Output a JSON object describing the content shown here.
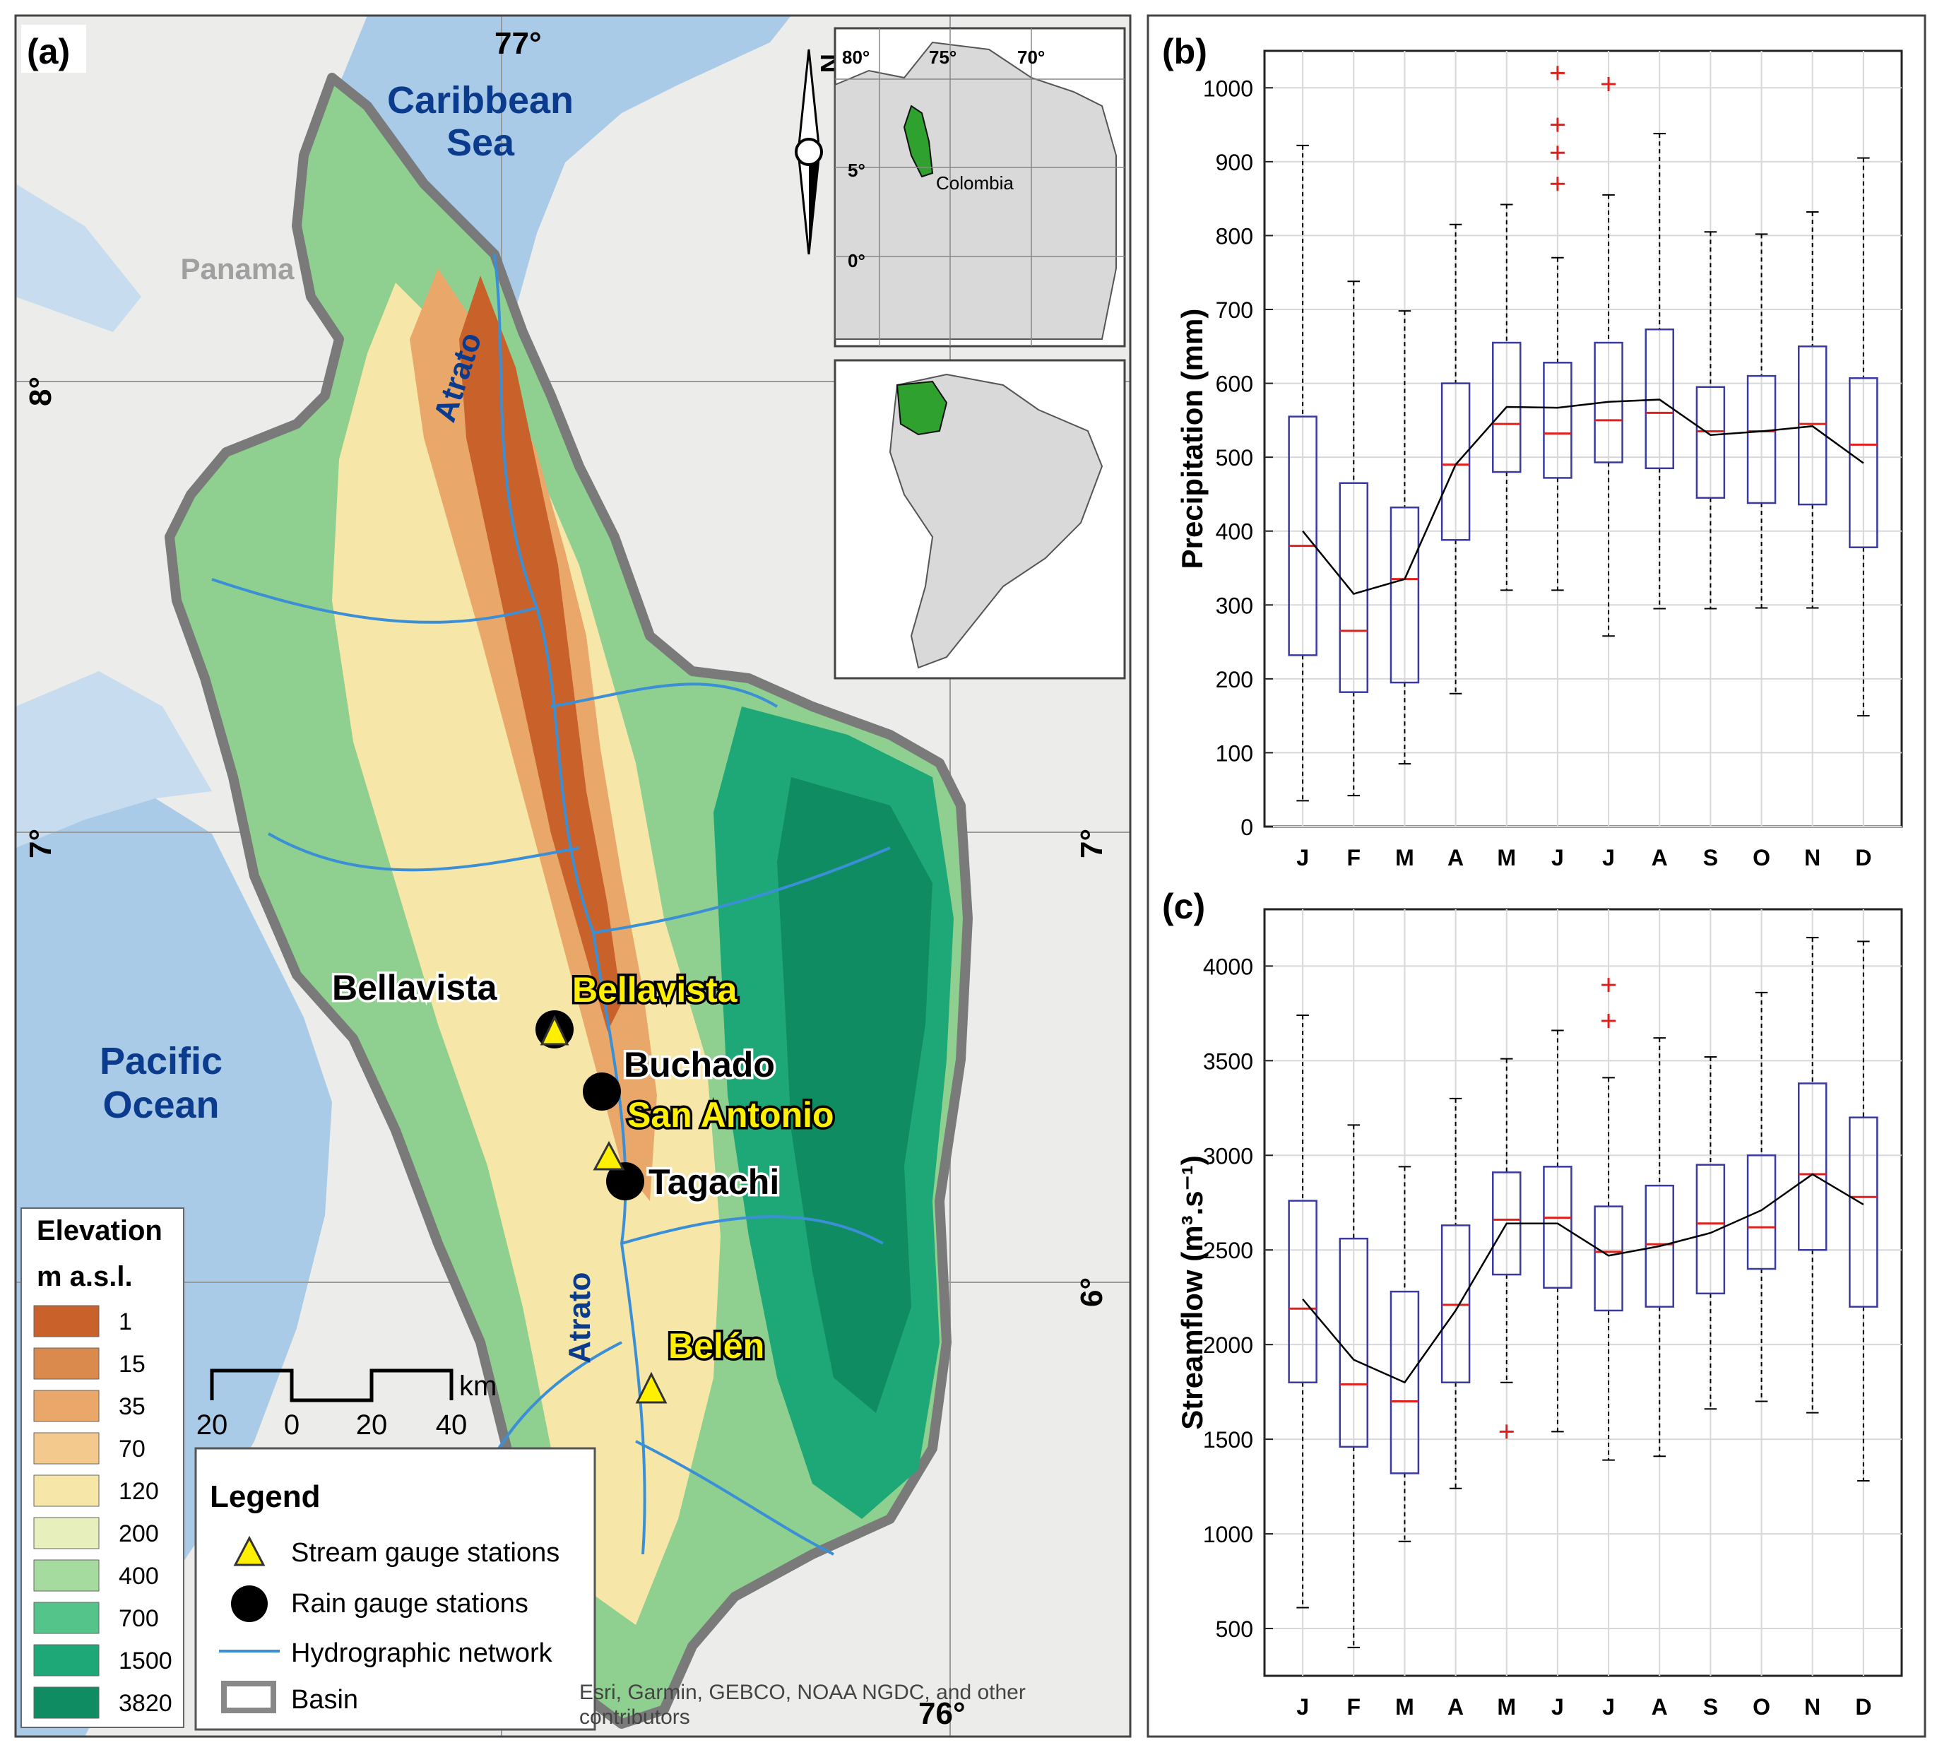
{
  "panel_a": {
    "tag": "(a)",
    "lon_ticks": [
      "77°",
      "76°"
    ],
    "lat_ticks": [
      "8°",
      "7°",
      "6°"
    ],
    "lat_ticks_right": [
      "7°",
      "6°"
    ],
    "north_letter": "N",
    "sea_labels": [
      "Caribbean",
      "Sea"
    ],
    "ocean_labels": [
      "Pacific",
      "Ocean"
    ],
    "country_label": "Panama",
    "river_labels": [
      "Atrato",
      "Atrato"
    ],
    "rain_stations": [
      "Bellavista",
      "Buchado",
      "Tagachi"
    ],
    "stream_stations": [
      "Bellavista",
      "San Antonio",
      "Belén"
    ],
    "inset_lon_ticks": [
      "80°",
      "75°",
      "70°"
    ],
    "inset_lat_ticks": [
      "5°",
      "0°"
    ],
    "inset_country": "Colombia",
    "elevation_legend": {
      "title": "Elevation",
      "unit": "m a.s.l.",
      "values": [
        "1",
        "15",
        "35",
        "70",
        "120",
        "200",
        "400",
        "700",
        "1500",
        "3820"
      ],
      "colors": [
        "#c9622a",
        "#d98a4c",
        "#e9a86a",
        "#f4c98d",
        "#f6e7a8",
        "#e7f0bd",
        "#a6dba0",
        "#55c48a",
        "#1fa877",
        "#0f8c61"
      ]
    },
    "scale_bar": {
      "ticks": [
        "20",
        "0",
        "20",
        "40"
      ],
      "unit": "km"
    },
    "legend": {
      "title": "Legend",
      "items": [
        "Stream gauge stations",
        "Rain gauge stations",
        "Hydrographic network",
        "Basin"
      ]
    },
    "attribution": [
      "Esri, Garmin, GEBCO, NOAA NGDC, and other",
      "contributors"
    ],
    "colors": {
      "land": "#eeeeec",
      "sea": "#a9cbe8",
      "river": "#3a8fd6",
      "label_blue": "#0b3b8c",
      "station_yellow": "#ffef00"
    }
  },
  "chart_data": [
    {
      "panel": "(b)",
      "type": "box",
      "ylabel": "Precipitation (mm)",
      "categories": [
        "J",
        "F",
        "M",
        "A",
        "M",
        "J",
        "J",
        "A",
        "S",
        "O",
        "N",
        "D"
      ],
      "ylim": [
        0,
        1050
      ],
      "yticks": [
        0,
        100,
        200,
        300,
        400,
        500,
        600,
        700,
        800,
        900,
        1000
      ],
      "grid": true,
      "boxes": [
        {
          "lo": 35,
          "q1": 232,
          "med": 380,
          "q3": 555,
          "hi": 922,
          "mean": 400,
          "outliers": []
        },
        {
          "lo": 42,
          "q1": 182,
          "med": 265,
          "q3": 465,
          "hi": 738,
          "mean": 315,
          "outliers": []
        },
        {
          "lo": 85,
          "q1": 195,
          "med": 335,
          "q3": 432,
          "hi": 698,
          "mean": 335,
          "outliers": []
        },
        {
          "lo": 180,
          "q1": 388,
          "med": 490,
          "q3": 600,
          "hi": 815,
          "mean": 490,
          "outliers": []
        },
        {
          "lo": 320,
          "q1": 480,
          "med": 545,
          "q3": 655,
          "hi": 842,
          "mean": 568,
          "outliers": []
        },
        {
          "lo": 320,
          "q1": 472,
          "med": 532,
          "q3": 628,
          "hi": 770,
          "mean": 567,
          "outliers": [
            1020,
            950,
            912,
            870
          ]
        },
        {
          "lo": 258,
          "q1": 493,
          "med": 550,
          "q3": 655,
          "hi": 855,
          "mean": 575,
          "outliers": [
            1005
          ]
        },
        {
          "lo": 295,
          "q1": 485,
          "med": 560,
          "q3": 673,
          "hi": 938,
          "mean": 578,
          "outliers": []
        },
        {
          "lo": 295,
          "q1": 445,
          "med": 535,
          "q3": 595,
          "hi": 805,
          "mean": 530,
          "outliers": []
        },
        {
          "lo": 296,
          "q1": 438,
          "med": 535,
          "q3": 610,
          "hi": 802,
          "mean": 535,
          "outliers": []
        },
        {
          "lo": 296,
          "q1": 436,
          "med": 545,
          "q3": 650,
          "hi": 832,
          "mean": 542,
          "outliers": []
        },
        {
          "lo": 150,
          "q1": 378,
          "med": 517,
          "q3": 607,
          "hi": 905,
          "mean": 492,
          "outliers": []
        }
      ]
    },
    {
      "panel": "(c)",
      "type": "box",
      "ylabel": "Streamflow (m³.s⁻¹)",
      "categories": [
        "J",
        "F",
        "M",
        "A",
        "M",
        "J",
        "J",
        "A",
        "S",
        "O",
        "N",
        "D"
      ],
      "ylim": [
        250,
        4300
      ],
      "yticks": [
        500,
        1000,
        1500,
        2000,
        2500,
        3000,
        3500,
        4000
      ],
      "grid": true,
      "boxes": [
        {
          "lo": 610,
          "q1": 1800,
          "med": 2190,
          "q3": 2760,
          "hi": 3740,
          "mean": 2240,
          "outliers": []
        },
        {
          "lo": 400,
          "q1": 1460,
          "med": 1790,
          "q3": 2560,
          "hi": 3160,
          "mean": 1920,
          "outliers": []
        },
        {
          "lo": 960,
          "q1": 1320,
          "med": 1700,
          "q3": 2280,
          "hi": 2940,
          "mean": 1800,
          "outliers": []
        },
        {
          "lo": 1240,
          "q1": 1800,
          "med": 2210,
          "q3": 2630,
          "hi": 3300,
          "mean": 2180,
          "outliers": []
        },
        {
          "lo": 1800,
          "q1": 2370,
          "med": 2660,
          "q3": 2910,
          "hi": 3510,
          "mean": 2640,
          "outliers": [
            1540
          ]
        },
        {
          "lo": 1540,
          "q1": 2300,
          "med": 2670,
          "q3": 2940,
          "hi": 3660,
          "mean": 2640,
          "outliers": []
        },
        {
          "lo": 1390,
          "q1": 2180,
          "med": 2490,
          "q3": 2730,
          "hi": 3410,
          "mean": 2470,
          "outliers": [
            3710,
            3900
          ]
        },
        {
          "lo": 1410,
          "q1": 2200,
          "med": 2530,
          "q3": 2840,
          "hi": 3620,
          "mean": 2520,
          "outliers": []
        },
        {
          "lo": 1660,
          "q1": 2270,
          "med": 2640,
          "q3": 2950,
          "hi": 3520,
          "mean": 2590,
          "outliers": []
        },
        {
          "lo": 1700,
          "q1": 2400,
          "med": 2620,
          "q3": 3000,
          "hi": 3860,
          "mean": 2710,
          "outliers": []
        },
        {
          "lo": 1640,
          "q1": 2500,
          "med": 2900,
          "q3": 3380,
          "hi": 4150,
          "mean": 2900,
          "outliers": []
        },
        {
          "lo": 1280,
          "q1": 2200,
          "med": 2780,
          "q3": 3200,
          "hi": 4130,
          "mean": 2740,
          "outliers": []
        }
      ]
    }
  ]
}
